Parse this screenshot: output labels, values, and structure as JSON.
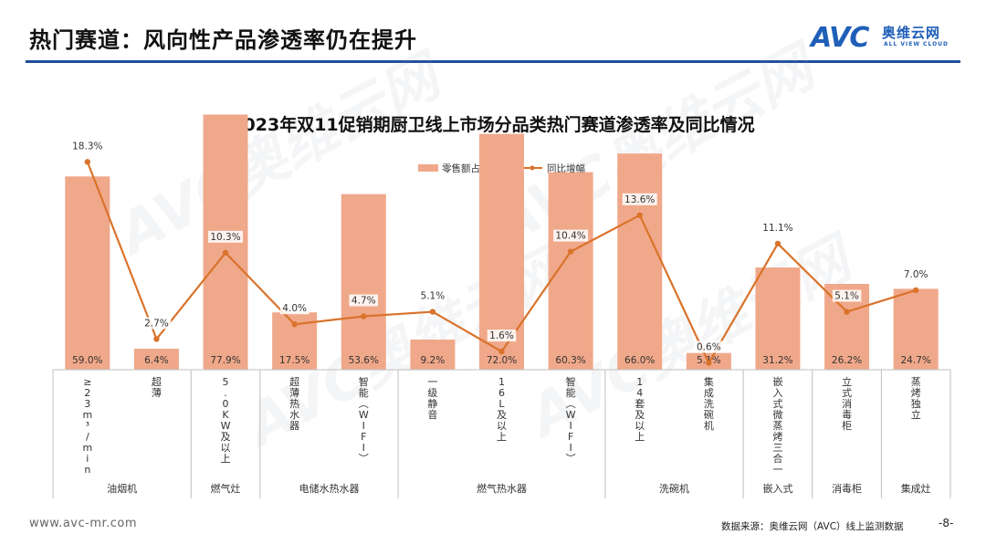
{
  "header": {
    "title": "热门赛道：风向性产品渗透率仍在提升",
    "logo_letters": "AVC",
    "logo_cn": "奥维云网",
    "logo_en": "ALL VIEW CLOUD"
  },
  "watermark": {
    "letters": "AVC",
    "cn": "奥维云网",
    "en": "ALL VIEW CLOUD"
  },
  "footer": {
    "url": "www.avc-mr.com",
    "source": "数据来源：奥维云网（AVC）线上监测数据",
    "page": "-8-"
  },
  "colors": {
    "bar": "#f0a88a",
    "line": "#d9732b",
    "header_line": "#1f4e9a",
    "brand": "#1f5fb8"
  },
  "chart_data": {
    "type": "bar",
    "title": "2023年双11促销期厨卫线上市场分品类热门赛道渗透率及同比情况",
    "legend_position": "top",
    "categories": [
      "≥23m³/min",
      "超薄",
      "5.0KW及以上",
      "超薄热水器",
      "智能（WIFI）",
      "一级静音",
      "16L及以上",
      "智能（WIFI）",
      "14套及以上",
      "集成洗碗机",
      "嵌入式微蒸烤三合一",
      "立式消毒柜",
      "蒸烤独立"
    ],
    "groups": [
      {
        "name": "油烟机",
        "span": 2
      },
      {
        "name": "燃气灶",
        "span": 1
      },
      {
        "name": "电储水热水器",
        "span": 2
      },
      {
        "name": "燃气热水器",
        "span": 3
      },
      {
        "name": "洗碗机",
        "span": 2
      },
      {
        "name": "嵌入式",
        "span": 1
      },
      {
        "name": "消毒柜",
        "span": 1
      },
      {
        "name": "集成灶",
        "span": 1
      }
    ],
    "series": [
      {
        "name": "零售额占比",
        "type": "bar",
        "values": [
          59.0,
          6.4,
          77.9,
          17.5,
          53.6,
          9.2,
          72.0,
          60.3,
          66.0,
          5.1,
          31.2,
          26.2,
          24.7
        ],
        "labels": [
          "59.0%",
          "6.4%",
          "77.9%",
          "17.5%",
          "53.6%",
          "9.2%",
          "72.0%",
          "60.3%",
          "66.0%",
          "5.1%",
          "31.2%",
          "26.2%",
          "24.7%"
        ]
      },
      {
        "name": "同比增幅",
        "type": "line",
        "values": [
          18.3,
          2.7,
          10.3,
          4.0,
          4.7,
          5.1,
          1.6,
          10.4,
          13.6,
          0.6,
          11.1,
          5.1,
          7.0
        ],
        "labels": [
          "18.3%",
          "2.7%",
          "10.3%",
          "4.0%",
          "4.7%",
          "5.1%",
          "1.6%",
          "10.4%",
          "13.6%",
          "0.6%",
          "11.1%",
          "5.1%",
          "7.0%"
        ]
      }
    ],
    "bar_ylim": [
      0,
      85
    ],
    "line_ylim": [
      0,
      25
    ],
    "grid": false
  }
}
